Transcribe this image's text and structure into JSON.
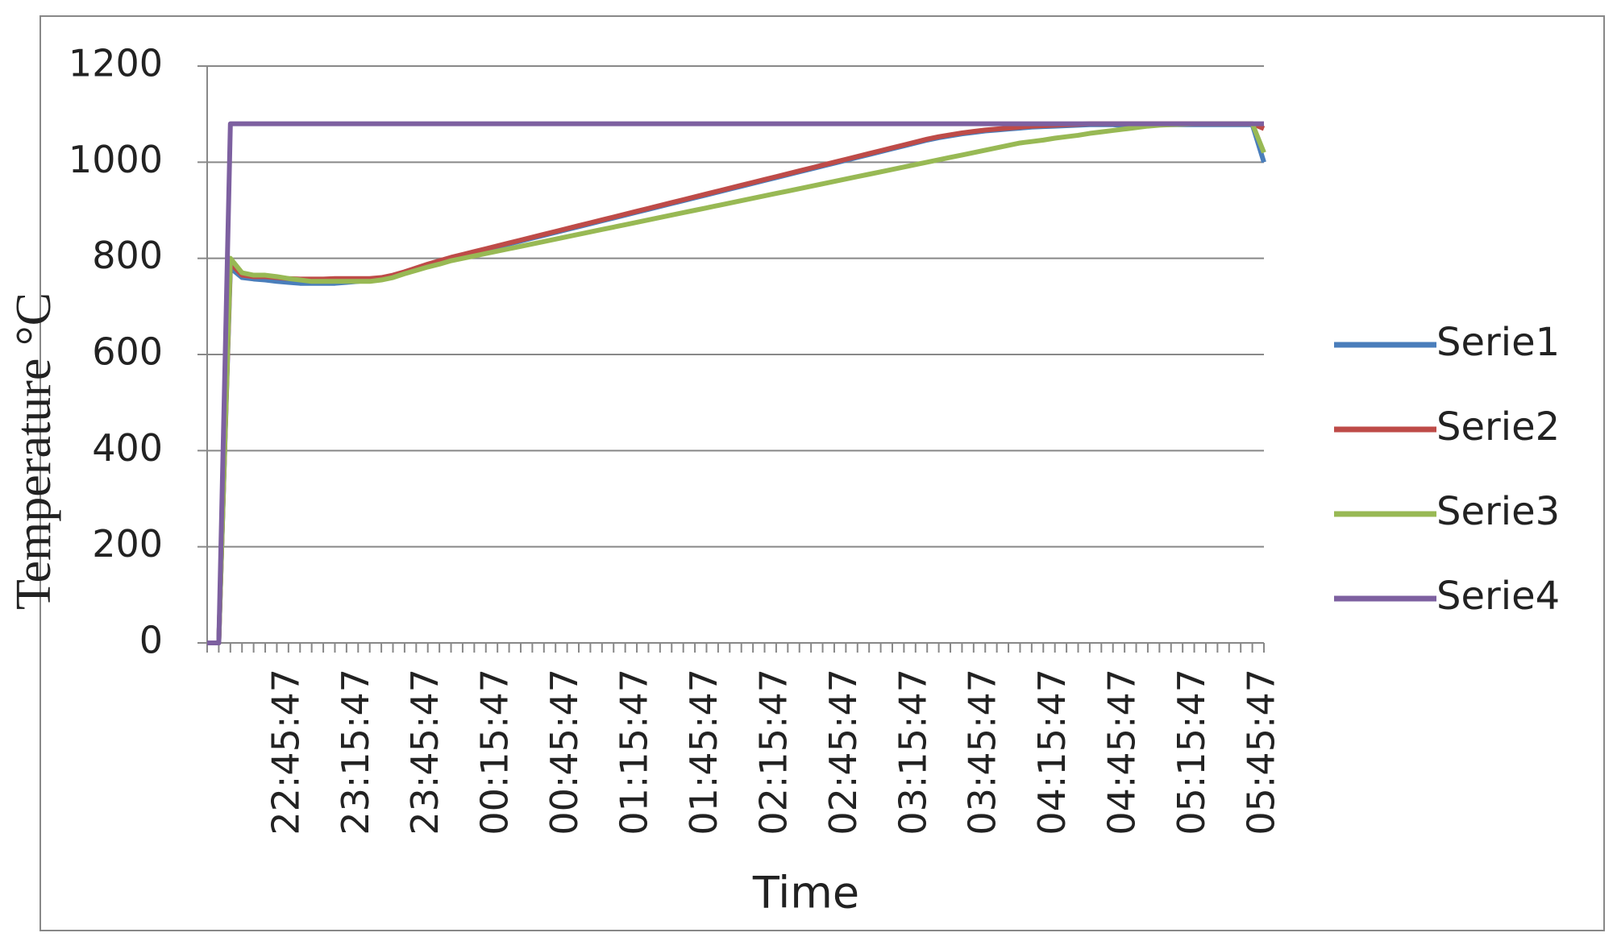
{
  "chart_data": {
    "type": "line",
    "x_label": "Time",
    "y_label": "Temperature °C",
    "categories": [
      null,
      null,
      null,
      null,
      null,
      null,
      null,
      "22:45:47",
      null,
      null,
      null,
      null,
      null,
      "23:15:47",
      null,
      null,
      null,
      null,
      null,
      "23:45:47",
      null,
      null,
      null,
      null,
      null,
      "00:15:47",
      null,
      null,
      null,
      null,
      null,
      "00:45:47",
      null,
      null,
      null,
      null,
      null,
      "01:15:47",
      null,
      null,
      null,
      null,
      null,
      "01:45:47",
      null,
      null,
      null,
      null,
      null,
      "02:15:47",
      null,
      null,
      null,
      null,
      null,
      "02:45:47",
      null,
      null,
      null,
      null,
      null,
      "03:15:47",
      null,
      null,
      null,
      null,
      null,
      "03:45:47",
      null,
      null,
      null,
      null,
      null,
      "04:15:47",
      null,
      null,
      null,
      null,
      null,
      "04:45:47",
      null,
      null,
      null,
      null,
      null,
      "05:15:47",
      null,
      null,
      null,
      null,
      null,
      "05:45:47"
    ],
    "series": [
      {
        "name": "Serie1",
        "color": "#4a7ebb",
        "values": [
          0,
          0,
          780,
          760,
          757,
          755,
          752,
          750,
          748,
          748,
          748,
          748,
          750,
          752,
          755,
          758,
          763,
          770,
          778,
          786,
          793,
          800,
          806,
          812,
          818,
          824,
          830,
          836,
          842,
          848,
          854,
          860,
          866,
          872,
          878,
          884,
          890,
          896,
          902,
          908,
          914,
          920,
          926,
          932,
          938,
          944,
          950,
          956,
          962,
          968,
          974,
          980,
          986,
          992,
          998,
          1004,
          1010,
          1016,
          1022,
          1028,
          1034,
          1040,
          1046,
          1051,
          1055,
          1059,
          1062,
          1065,
          1067,
          1069,
          1071,
          1073,
          1074,
          1075,
          1076,
          1077,
          1078,
          1078,
          1078,
          1076,
          1076,
          1078,
          1078,
          1078,
          1078,
          1078,
          1078,
          1078,
          1078,
          1078,
          1078,
          1000
        ]
      },
      {
        "name": "Serie2",
        "color": "#be4b48",
        "values": [
          0,
          0,
          790,
          765,
          762,
          762,
          760,
          758,
          757,
          757,
          757,
          758,
          758,
          758,
          758,
          760,
          765,
          772,
          780,
          788,
          795,
          802,
          808,
          814,
          820,
          826,
          832,
          838,
          844,
          850,
          856,
          862,
          868,
          874,
          880,
          886,
          892,
          898,
          904,
          910,
          916,
          922,
          928,
          934,
          940,
          946,
          952,
          958,
          964,
          970,
          976,
          982,
          988,
          994,
          1000,
          1006,
          1012,
          1018,
          1024,
          1030,
          1036,
          1042,
          1048,
          1053,
          1057,
          1061,
          1064,
          1067,
          1069,
          1071,
          1073,
          1075,
          1076,
          1077,
          1078,
          1079,
          1080,
          1080,
          1080,
          1080,
          1080,
          1080,
          1080,
          1080,
          1080,
          1080,
          1080,
          1080,
          1080,
          1080,
          1080,
          1070
        ]
      },
      {
        "name": "Serie3",
        "color": "#98b954",
        "values": [
          0,
          0,
          800,
          770,
          765,
          765,
          762,
          758,
          755,
          752,
          752,
          752,
          752,
          752,
          752,
          755,
          760,
          768,
          775,
          782,
          788,
          795,
          800,
          805,
          810,
          815,
          820,
          825,
          830,
          835,
          840,
          845,
          850,
          855,
          860,
          865,
          870,
          875,
          880,
          885,
          890,
          895,
          900,
          905,
          910,
          915,
          920,
          925,
          930,
          935,
          940,
          945,
          950,
          955,
          960,
          965,
          970,
          975,
          980,
          985,
          990,
          995,
          1000,
          1005,
          1010,
          1015,
          1020,
          1025,
          1030,
          1035,
          1040,
          1043,
          1046,
          1050,
          1053,
          1056,
          1060,
          1063,
          1066,
          1069,
          1072,
          1075,
          1077,
          1078,
          1079,
          1080,
          1080,
          1080,
          1080,
          1080,
          1080,
          1020
        ]
      },
      {
        "name": "Serie4",
        "color": "#7d60a0",
        "values": [
          0,
          0,
          1080,
          1080,
          1080,
          1080,
          1080,
          1080,
          1080,
          1080,
          1080,
          1080,
          1080,
          1080,
          1080,
          1080,
          1080,
          1080,
          1080,
          1080,
          1080,
          1080,
          1080,
          1080,
          1080,
          1080,
          1080,
          1080,
          1080,
          1080,
          1080,
          1080,
          1080,
          1080,
          1080,
          1080,
          1080,
          1080,
          1080,
          1080,
          1080,
          1080,
          1080,
          1080,
          1080,
          1080,
          1080,
          1080,
          1080,
          1080,
          1080,
          1080,
          1080,
          1080,
          1080,
          1080,
          1080,
          1080,
          1080,
          1080,
          1080,
          1080,
          1080,
          1080,
          1080,
          1080,
          1080,
          1080,
          1080,
          1080,
          1080,
          1080,
          1080,
          1080,
          1080,
          1080,
          1080,
          1080,
          1080,
          1080,
          1080,
          1080,
          1080,
          1080,
          1080,
          1080,
          1080,
          1080,
          1080,
          1080,
          1080,
          1080
        ]
      }
    ],
    "ylim": [
      0,
      1200
    ],
    "yticks": [
      0,
      200,
      400,
      600,
      800,
      1000,
      1200
    ],
    "grid": true,
    "legend": "right"
  }
}
